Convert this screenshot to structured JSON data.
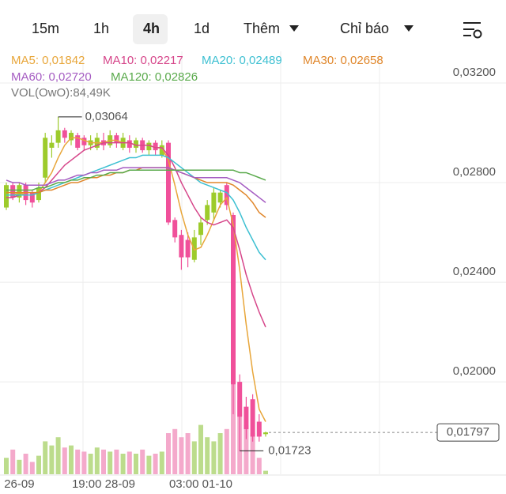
{
  "toolbar": {
    "intervals": [
      {
        "label": "15m",
        "active": false
      },
      {
        "label": "1h",
        "active": false
      },
      {
        "label": "4h",
        "active": true
      },
      {
        "label": "1d",
        "active": false
      }
    ],
    "more": "Thêm",
    "indicators": "Chỉ báo"
  },
  "chart_data": {
    "type": "candlestick",
    "categories": [
      null,
      null,
      "26-09",
      null,
      null,
      null,
      null,
      null,
      null,
      null,
      null,
      null,
      null,
      null,
      null,
      "19:00 28-09",
      null,
      null,
      null,
      null,
      null,
      null,
      null,
      null,
      null,
      null,
      null,
      null,
      null,
      null,
      "03:00 01-10",
      null,
      null,
      null,
      null,
      null,
      null,
      null,
      null,
      null,
      null
    ],
    "open": [
      0.027,
      0.0279,
      0.0274,
      0.0279,
      0.0276,
      0.0273,
      0.0282,
      0.0294,
      0.0296,
      0.0301,
      0.0297,
      0.0299,
      0.0298,
      0.0295,
      0.0294,
      0.0297,
      0.0295,
      0.0299,
      0.0294,
      0.0297,
      0.0294,
      0.0297,
      0.0293,
      0.0296,
      0.0291,
      0.0296,
      0.0265,
      0.0259,
      0.0257,
      0.0249,
      0.0259,
      0.0265,
      0.0268,
      0.0272,
      0.0279,
      0.0267,
      0.02,
      0.019,
      0.0193,
      0.0184,
      0.0179
    ],
    "high": [
      0.028,
      0.028,
      0.028,
      0.028,
      0.0277,
      0.028,
      0.03,
      0.0299,
      0.03064,
      0.0302,
      0.0301,
      0.03,
      0.0299,
      0.0299,
      0.03,
      0.03,
      0.0301,
      0.03,
      0.03,
      0.0299,
      0.0298,
      0.0298,
      0.0297,
      0.0297,
      0.0297,
      0.0297,
      0.0266,
      0.0261,
      0.026,
      0.0261,
      0.0266,
      0.0273,
      0.0278,
      0.0277,
      0.028,
      0.0268,
      0.0203,
      0.0194,
      0.0195,
      0.0187,
      0.018
    ],
    "low": [
      0.0269,
      0.0273,
      0.0272,
      0.0271,
      0.027,
      0.0272,
      0.028,
      0.029,
      0.0294,
      0.0296,
      0.0295,
      0.0293,
      0.0293,
      0.0293,
      0.0293,
      0.0293,
      0.0294,
      0.0294,
      0.0293,
      0.0292,
      0.0292,
      0.0292,
      0.0291,
      0.0291,
      0.029,
      0.0263,
      0.0256,
      0.0245,
      0.0246,
      0.0248,
      0.0255,
      0.0263,
      0.0265,
      0.027,
      0.0269,
      0.0187,
      0.01723,
      0.0177,
      0.0176,
      0.0176,
      0.0178
    ],
    "close": [
      0.0279,
      0.0274,
      0.0279,
      0.0273,
      0.0272,
      0.0278,
      0.0298,
      0.0296,
      0.0301,
      0.0298,
      0.03,
      0.0294,
      0.0295,
      0.0297,
      0.0298,
      0.0295,
      0.0299,
      0.0296,
      0.0298,
      0.0294,
      0.0297,
      0.0293,
      0.0296,
      0.0293,
      0.0295,
      0.0264,
      0.0258,
      0.025,
      0.025,
      0.0258,
      0.0264,
      0.0271,
      0.0276,
      0.0276,
      0.0271,
      0.0199,
      0.0186,
      0.0181,
      0.0178,
      0.0178,
      0.01797
    ],
    "volume": [
      400000,
      600000,
      350000,
      500000,
      300000,
      450000,
      800000,
      700000,
      900000,
      650000,
      700000,
      600000,
      550000,
      500000,
      650000,
      600000,
      550000,
      600000,
      500000,
      550000,
      500000,
      600000,
      450000,
      500000,
      550000,
      1000000,
      1100000,
      900000,
      1000000,
      800000,
      1200000,
      900000,
      800000,
      1000000,
      1100000,
      2500000,
      1800000,
      1200000,
      1000000,
      400000,
      84490
    ],
    "up_color": "#9dcb2b",
    "down_color": "#f0509a",
    "volume_up_color": "#bcdc8c",
    "volume_down_color": "#f4a9cb",
    "series": [
      {
        "name": "MA5: 0,01842",
        "color": "#e8a63a",
        "values": [
          0.0275,
          0.0275,
          0.0276,
          0.0275,
          0.0275,
          0.0276,
          0.028,
          0.0284,
          0.029,
          0.0295,
          0.0298,
          0.0298,
          0.0297,
          0.0296,
          0.0296,
          0.0296,
          0.0297,
          0.0297,
          0.0296,
          0.0296,
          0.0295,
          0.0295,
          0.0295,
          0.0294,
          0.0294,
          0.0289,
          0.0279,
          0.0268,
          0.0259,
          0.0253,
          0.0254,
          0.0259,
          0.0265,
          0.0271,
          0.0274,
          0.0263,
          0.0245,
          0.0223,
          0.0204,
          0.0189,
          0.0184
        ]
      },
      {
        "name": "MA10: 0,02217",
        "color": "#d6468a",
        "values": [
          0.0274,
          0.0274,
          0.0275,
          0.0275,
          0.0275,
          0.0276,
          0.0278,
          0.0281,
          0.0284,
          0.0287,
          0.0289,
          0.0291,
          0.0293,
          0.0294,
          0.0295,
          0.0296,
          0.0296,
          0.0296,
          0.0296,
          0.0296,
          0.0295,
          0.0295,
          0.0295,
          0.0294,
          0.0294,
          0.0291,
          0.0286,
          0.028,
          0.0275,
          0.027,
          0.0266,
          0.0264,
          0.0263,
          0.0264,
          0.0265,
          0.0262,
          0.0253,
          0.0243,
          0.0235,
          0.0228,
          0.0222
        ]
      },
      {
        "name": "MA20: 0,02489",
        "color": "#3ec0d2",
        "values": [
          0.0275,
          0.0275,
          0.0275,
          0.0275,
          0.0275,
          0.0276,
          0.0277,
          0.0278,
          0.0279,
          0.028,
          0.0281,
          0.0282,
          0.0283,
          0.0284,
          0.0285,
          0.0286,
          0.0287,
          0.0288,
          0.0289,
          0.029,
          0.029,
          0.0291,
          0.0291,
          0.0291,
          0.0291,
          0.029,
          0.0288,
          0.0286,
          0.0284,
          0.0282,
          0.028,
          0.0279,
          0.0278,
          0.0277,
          0.0276,
          0.0273,
          0.0268,
          0.0262,
          0.0257,
          0.0252,
          0.0249
        ]
      },
      {
        "name": "MA30: 0,02658",
        "color": "#e0862a",
        "values": [
          0.0276,
          0.0276,
          0.0276,
          0.0276,
          0.0276,
          0.0276,
          0.0277,
          0.0277,
          0.0278,
          0.0279,
          0.028,
          0.028,
          0.0281,
          0.0282,
          0.0282,
          0.0283,
          0.0283,
          0.0284,
          0.0284,
          0.0285,
          0.0285,
          0.0286,
          0.0286,
          0.0286,
          0.0286,
          0.0286,
          0.0285,
          0.0284,
          0.0283,
          0.0282,
          0.0281,
          0.028,
          0.028,
          0.028,
          0.028,
          0.0279,
          0.0277,
          0.0275,
          0.0272,
          0.0268,
          0.0266
        ]
      },
      {
        "name": "MA60: 0,02720",
        "color": "#a55cc2",
        "values": [
          0.0281,
          0.028,
          0.028,
          0.0279,
          0.0279,
          0.0279,
          0.0279,
          0.028,
          0.0281,
          0.0281,
          0.0282,
          0.0283,
          0.0283,
          0.0284,
          0.0284,
          0.0285,
          0.0285,
          0.0285,
          0.0286,
          0.0286,
          0.0286,
          0.0286,
          0.0286,
          0.0286,
          0.0286,
          0.0286,
          0.0285,
          0.0284,
          0.0283,
          0.0282,
          0.0282,
          0.0282,
          0.0282,
          0.0282,
          0.0282,
          0.0281,
          0.028,
          0.0278,
          0.0276,
          0.0274,
          0.0272
        ]
      },
      {
        "name": "MA120: 0,02826",
        "color": "#5aaa4c",
        "values": [
          0.0277,
          0.0277,
          0.0277,
          0.0277,
          0.0277,
          0.0278,
          0.0278,
          0.0279,
          0.028,
          0.028,
          0.0281,
          0.0281,
          0.0282,
          0.0282,
          0.0283,
          0.0283,
          0.0284,
          0.0284,
          0.0284,
          0.0285,
          0.0285,
          0.0285,
          0.0285,
          0.0285,
          0.0285,
          0.0285,
          0.0285,
          0.0285,
          0.0285,
          0.0285,
          0.0285,
          0.0285,
          0.0285,
          0.0285,
          0.0285,
          0.0285,
          0.0284,
          0.0284,
          0.0283,
          0.0282,
          0.0281
        ]
      }
    ],
    "volume_label": "VOL(OwO):84,49K",
    "high_label": "0,03064",
    "low_label": "0,01723",
    "last_price_label": "0,01797",
    "ylim": [
      0.01629,
      0.03327
    ],
    "yticks": [
      {
        "value": 0.032,
        "label": "0,03200"
      },
      {
        "value": 0.028,
        "label": "0,02800"
      },
      {
        "value": 0.024,
        "label": "0,02400"
      },
      {
        "value": 0.02,
        "label": "0,02000"
      }
    ],
    "grid": true
  }
}
